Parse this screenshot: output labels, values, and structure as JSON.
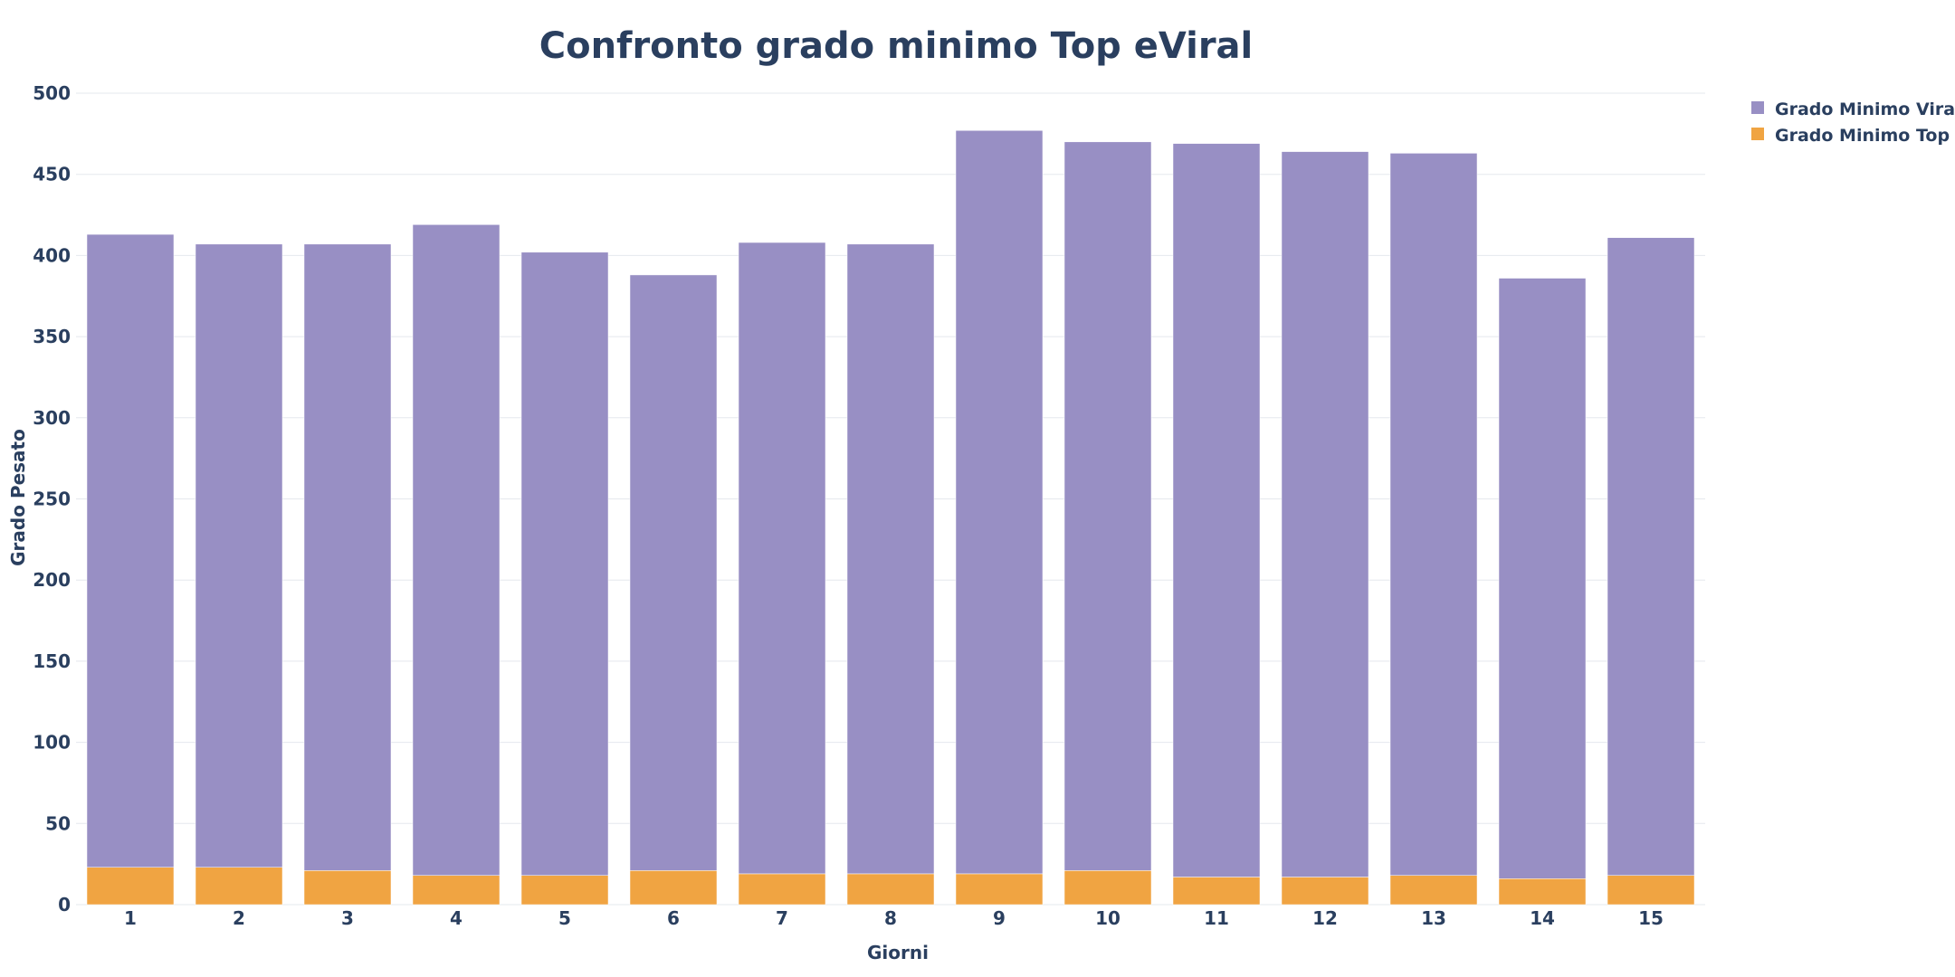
{
  "chart_data": {
    "type": "bar",
    "barmode": "stack",
    "title": "Confronto grado minimo Top eViral",
    "xlabel": "Giorni",
    "ylabel": "Grado Pesato",
    "categories": [
      "1",
      "2",
      "3",
      "4",
      "5",
      "6",
      "7",
      "8",
      "9",
      "10",
      "11",
      "12",
      "13",
      "14",
      "15"
    ],
    "ylim": [
      0,
      500
    ],
    "yticks": [
      "0",
      "50",
      "100",
      "150",
      "200",
      "250",
      "300",
      "350",
      "400",
      "450",
      "500"
    ],
    "grid": true,
    "legend_position": "top-right",
    "series": [
      {
        "name": "Grado Minimo Top",
        "color": "#f0a442",
        "values": [
          23,
          23,
          21,
          18,
          18,
          21,
          19,
          19,
          19,
          21,
          17,
          17,
          18,
          16,
          18
        ]
      },
      {
        "name": "Grado Minimo Viral",
        "color": "#988fc4",
        "values": [
          390,
          384,
          386,
          401,
          384,
          367,
          389,
          388,
          458,
          449,
          452,
          447,
          445,
          370,
          393
        ]
      }
    ],
    "legend_order": [
      "Grado Minimo Viral",
      "Grado Minimo Top"
    ]
  }
}
